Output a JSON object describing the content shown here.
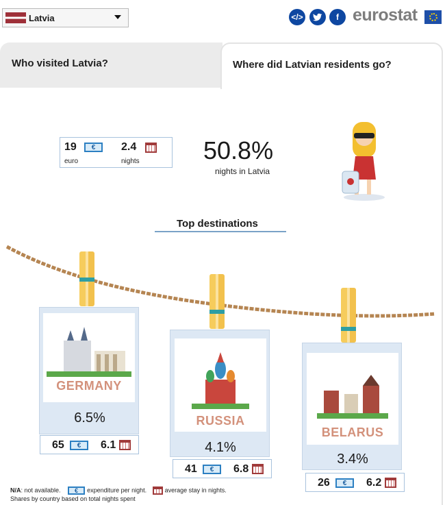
{
  "header": {
    "country": "Latvia",
    "brand": "eurostat",
    "social": [
      "embed-icon",
      "twitter-icon",
      "facebook-icon"
    ]
  },
  "tabs": [
    {
      "label": "Who visited Latvia?"
    },
    {
      "label": "Where did Latvian residents go?"
    }
  ],
  "summary": {
    "euro_value": "19",
    "euro_label": "euro",
    "nights_value": "2.4",
    "nights_label": "nights",
    "share": "50.8%",
    "share_label": "nights in Latvia"
  },
  "top_title": "Top destinations",
  "destinations": [
    {
      "name": "GERMANY",
      "share": "6.5%",
      "euro": "65",
      "stay": "6.1"
    },
    {
      "name": "RUSSIA",
      "share": "4.1%",
      "euro": "41",
      "stay": "6.8"
    },
    {
      "name": "BELARUS",
      "share": "3.4%",
      "euro": "26",
      "stay": "6.2"
    }
  ],
  "legend": {
    "na": "N/A",
    "na_text": ": not available.",
    "euro_text": "expenditure per night.",
    "cal_text": "average stay in nights.",
    "note": "Shares by country based on total nights spent"
  },
  "colors": {
    "accent_blue": "#0e47a1",
    "dest_text": "#d3917b",
    "card_bg": "#dde8f4"
  }
}
